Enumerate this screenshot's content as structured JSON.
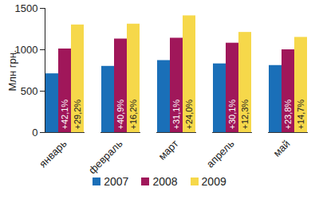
{
  "chart_data": {
    "type": "bar",
    "y_label": "Млн грн.",
    "categories": [
      "январь",
      "февраль",
      "март",
      "апрель",
      "май"
    ],
    "series": [
      {
        "name": "2007",
        "color": "#1a6fb8",
        "values": [
          710,
          800,
          870,
          830,
          810
        ]
      },
      {
        "name": "2008",
        "color": "#a0175a",
        "values": [
          1010,
          1130,
          1140,
          1080,
          1000
        ],
        "annotations": [
          "+42,1%",
          "+40,9%",
          "+31,1%",
          "+30,1%",
          "+23,8%"
        ]
      },
      {
        "name": "2009",
        "color": "#f6d84a",
        "values": [
          1300,
          1310,
          1410,
          1210,
          1150
        ],
        "annotations": [
          "+29,2%",
          "+16,2%",
          "+24,0%",
          "+12,3%",
          "+14,7%"
        ]
      }
    ],
    "ylim": [
      0,
      1500
    ],
    "yticks": [
      0,
      500,
      1000,
      1500
    ],
    "legend": "bottom"
  }
}
